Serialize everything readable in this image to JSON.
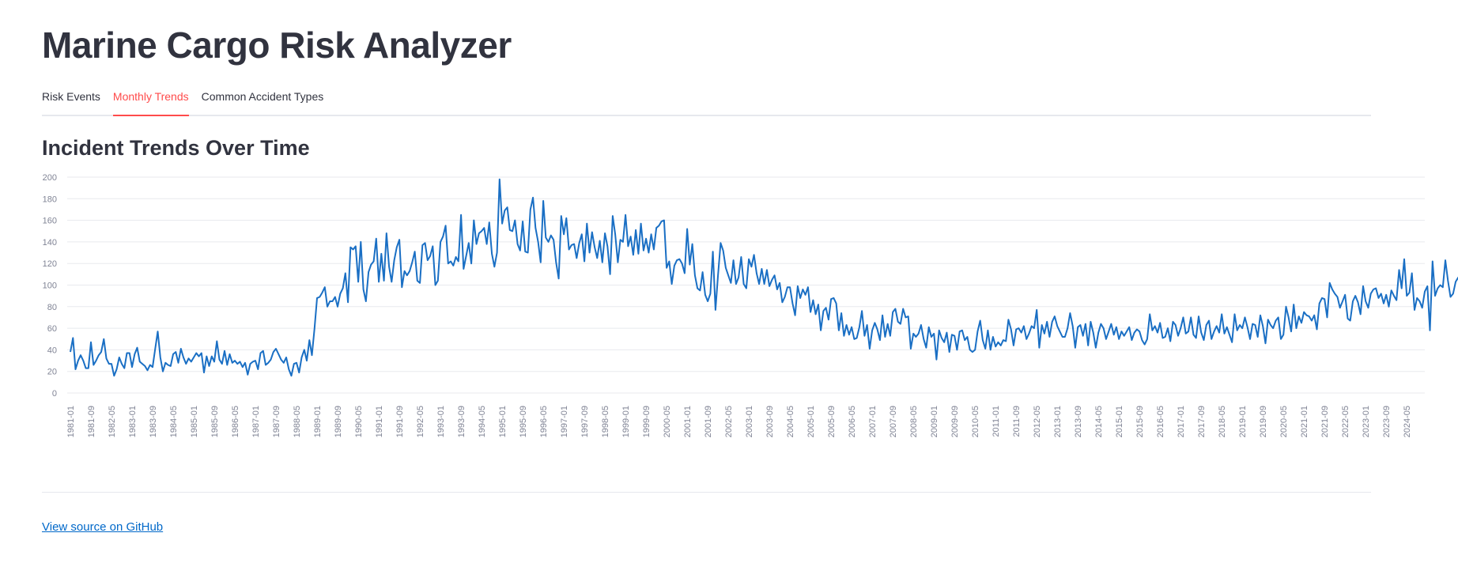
{
  "app": {
    "title": "Marine Cargo Risk Analyzer"
  },
  "tabs": [
    {
      "label": "Risk Events",
      "active": false
    },
    {
      "label": "Monthly Trends",
      "active": true
    },
    {
      "label": "Common Accident Types",
      "active": false
    }
  ],
  "section": {
    "title": "Incident Trends Over Time"
  },
  "footer": {
    "link_label": "View source on GitHub"
  },
  "colors": {
    "line": "#1a6fc4",
    "accent": "#ff4b4b",
    "link": "#0068c9"
  },
  "chart_data": {
    "type": "line",
    "title": "",
    "xlabel": "",
    "ylabel": "",
    "ylim": [
      0,
      200
    ],
    "yticks": [
      0,
      20,
      40,
      60,
      80,
      100,
      120,
      140,
      160,
      180,
      200
    ],
    "grid": true,
    "x_start": "1981-01",
    "x_end": "2024-12",
    "xtick_labels": [
      "1981-01",
      "1981-09",
      "1982-05",
      "1983-01",
      "1983-09",
      "1984-05",
      "1985-01",
      "1985-09",
      "1986-05",
      "1987-01",
      "1987-09",
      "1988-05",
      "1989-01",
      "1989-09",
      "1990-05",
      "1991-01",
      "1991-09",
      "1992-05",
      "1993-01",
      "1993-09",
      "1994-05",
      "1995-01",
      "1995-09",
      "1996-05",
      "1997-01",
      "1997-09",
      "1998-05",
      "1999-01",
      "1999-09",
      "2000-05",
      "2001-01",
      "2001-09",
      "2002-05",
      "2003-01",
      "2003-09",
      "2004-05",
      "2005-01",
      "2005-09",
      "2006-05",
      "2007-01",
      "2007-09",
      "2008-05",
      "2009-01",
      "2009-09",
      "2010-05",
      "2011-01",
      "2011-09",
      "2012-05",
      "2013-01",
      "2013-09",
      "2014-05",
      "2015-01",
      "2015-09",
      "2016-05",
      "2017-01",
      "2017-09",
      "2018-05",
      "2019-01",
      "2019-09",
      "2020-05",
      "2021-01",
      "2021-09",
      "2022-05",
      "2023-01",
      "2023-09",
      "2024-05"
    ],
    "series": [
      {
        "values": [
          38,
          51,
          22,
          30,
          35,
          30,
          23,
          23,
          47,
          26,
          30,
          35,
          38,
          50,
          32,
          27,
          27,
          16,
          22,
          33,
          27,
          23,
          37,
          37,
          24,
          36,
          42,
          29,
          27,
          25,
          21,
          26,
          24,
          41,
          57,
          33,
          20,
          28,
          26,
          25,
          36,
          38,
          28,
          41,
          33,
          27,
          32,
          29,
          33,
          37,
          34,
          37,
          19,
          34,
          25,
          34,
          29,
          48,
          31,
          27,
          39,
          26,
          36,
          28,
          30,
          27,
          29,
          24,
          28,
          17,
          27,
          29,
          30,
          22,
          37,
          39,
          26,
          28,
          31,
          38,
          41,
          36,
          31,
          28,
          33,
          22,
          16,
          27,
          28,
          19,
          33,
          40,
          30,
          49,
          35,
          60,
          88,
          89,
          93,
          98,
          80,
          85,
          85,
          89,
          80,
          92,
          97,
          111,
          84,
          135,
          133,
          136,
          103,
          140,
          96,
          85,
          112,
          119,
          122,
          143,
          103,
          129,
          104,
          148,
          117,
          103,
          123,
          135,
          142,
          98,
          113,
          109,
          113,
          121,
          131,
          104,
          102,
          137,
          139,
          123,
          127,
          136,
          100,
          104,
          140,
          145,
          155,
          120,
          122,
          118,
          126,
          122,
          165,
          115,
          127,
          139,
          120,
          160,
          138,
          148,
          150,
          153,
          138,
          158,
          129,
          117,
          130,
          198,
          157,
          169,
          172,
          151,
          150,
          160,
          138,
          132,
          159,
          131,
          130,
          170,
          181,
          153,
          140,
          121,
          178,
          144,
          140,
          146,
          142,
          121,
          106,
          164,
          147,
          162,
          133,
          137,
          138,
          125,
          139,
          147,
          122,
          157,
          130,
          149,
          135,
          125,
          141,
          121,
          148,
          136,
          110,
          164,
          147,
          121,
          142,
          140,
          165,
          136,
          145,
          128,
          151,
          129,
          157,
          132,
          143,
          130,
          147,
          133,
          153,
          155,
          159,
          160,
          116,
          122,
          101,
          118,
          123,
          124,
          120,
          111,
          152,
          119,
          138,
          109,
          97,
          95,
          112,
          91,
          85,
          92,
          131,
          77,
          109,
          139,
          132,
          116,
          109,
          102,
          123,
          101,
          107,
          126,
          101,
          97,
          124,
          117,
          128,
          111,
          101,
          115,
          101,
          114,
          99,
          105,
          109,
          96,
          102,
          84,
          89,
          98,
          98,
          83,
          72,
          99,
          88,
          96,
          91,
          98,
          75,
          86,
          73,
          82,
          58,
          76,
          79,
          68,
          87,
          88,
          83,
          58,
          74,
          53,
          63,
          54,
          61,
          50,
          51,
          61,
          76,
          53,
          63,
          41,
          58,
          65,
          59,
          49,
          72,
          52,
          64,
          53,
          75,
          78,
          66,
          64,
          78,
          70,
          71,
          41,
          55,
          52,
          55,
          63,
          50,
          42,
          61,
          52,
          55,
          31,
          58,
          51,
          47,
          56,
          38,
          54,
          53,
          40,
          57,
          58,
          49,
          52,
          40,
          38,
          40,
          57,
          67,
          49,
          41,
          58,
          40,
          52,
          43,
          47,
          44,
          49,
          48,
          68,
          59,
          44,
          59,
          60,
          56,
          62,
          50,
          55,
          62,
          60,
          77,
          42,
          63,
          55,
          66,
          52,
          66,
          71,
          62,
          57,
          52,
          52,
          60,
          74,
          62,
          42,
          61,
          63,
          53,
          64,
          44,
          66,
          56,
          42,
          56,
          64,
          60,
          50,
          57,
          64,
          54,
          61,
          50,
          57,
          53,
          57,
          61,
          49,
          56,
          59,
          57,
          49,
          45,
          50,
          73,
          58,
          62,
          56,
          65,
          51,
          52,
          60,
          48,
          66,
          63,
          53,
          60,
          70,
          55,
          57,
          70,
          54,
          51,
          71,
          56,
          49,
          63,
          67,
          50,
          57,
          62,
          56,
          73,
          55,
          61,
          54,
          47,
          73,
          58,
          63,
          60,
          70,
          61,
          50,
          64,
          63,
          52,
          72,
          62,
          46,
          68,
          63,
          60,
          67,
          70,
          50,
          54,
          80,
          70,
          57,
          82,
          60,
          71,
          65,
          75,
          72,
          71,
          67,
          72,
          59,
          83,
          88,
          87,
          70,
          102,
          96,
          92,
          89,
          79,
          85,
          91,
          69,
          67,
          85,
          90,
          84,
          73,
          99,
          85,
          79,
          92,
          96,
          97,
          88,
          92,
          83,
          91,
          80,
          95,
          90,
          86,
          114,
          97,
          124,
          90,
          93,
          111,
          77,
          88,
          85,
          79,
          94,
          99,
          58,
          122,
          90,
          97,
          100,
          98,
          123,
          104,
          89,
          92,
          103,
          107,
          100,
          94
        ]
      }
    ]
  }
}
